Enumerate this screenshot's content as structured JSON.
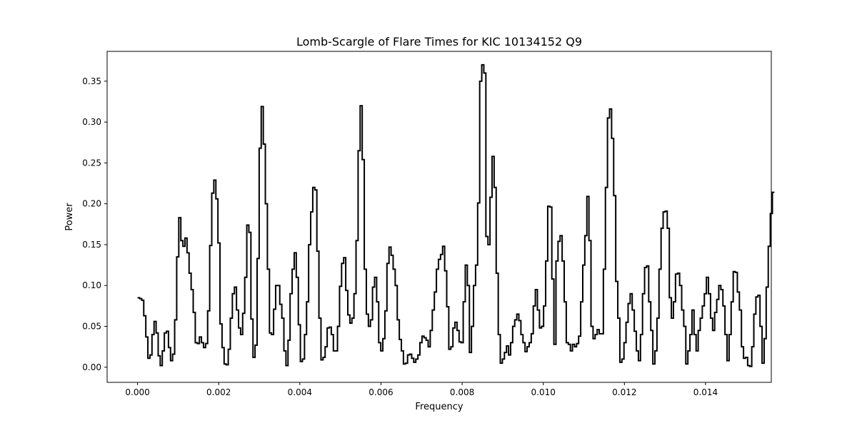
{
  "chart_data": {
    "type": "line",
    "style": "step",
    "title": "Lomb-Scargle of Flare Times for KIC 10134152 Q9",
    "xlabel": "Frequency",
    "ylabel": "Power",
    "xlim": [
      -0.00075,
      0.01562
    ],
    "ylim": [
      -0.0185,
      0.3865
    ],
    "xticks": [
      0.0,
      0.002,
      0.004,
      0.006,
      0.008,
      0.01,
      0.012,
      0.014
    ],
    "xtick_labels": [
      "0.000",
      "0.002",
      "0.004",
      "0.006",
      "0.008",
      "0.010",
      "0.012",
      "0.014"
    ],
    "yticks": [
      0.0,
      0.05,
      0.1,
      0.15,
      0.2,
      0.25,
      0.3,
      0.35
    ],
    "ytick_labels": [
      "0.00",
      "0.05",
      "0.10",
      "0.15",
      "0.20",
      "0.25",
      "0.30",
      "0.35"
    ],
    "grid": false,
    "line_color": "#000000",
    "series": [
      {
        "x_start": 0.0,
        "x_step": 5.08e-05,
        "values": [
          0.085,
          0.084,
          0.082,
          0.063,
          0.037,
          0.011,
          0.015,
          0.04,
          0.056,
          0.042,
          0.014,
          0.002,
          0.02,
          0.042,
          0.044,
          0.024,
          0.008,
          0.016,
          0.058,
          0.135,
          0.183,
          0.155,
          0.148,
          0.158,
          0.14,
          0.115,
          0.095,
          0.067,
          0.03,
          0.029,
          0.037,
          0.03,
          0.024,
          0.029,
          0.069,
          0.149,
          0.213,
          0.229,
          0.206,
          0.152,
          0.053,
          0.024,
          0.004,
          0.003,
          0.022,
          0.06,
          0.09,
          0.098,
          0.07,
          0.048,
          0.04,
          0.066,
          0.11,
          0.174,
          0.165,
          0.059,
          0.012,
          0.027,
          0.133,
          0.268,
          0.319,
          0.273,
          0.2,
          0.12,
          0.042,
          0.04,
          0.071,
          0.1,
          0.1,
          0.077,
          0.06,
          0.02,
          0.002,
          0.033,
          0.09,
          0.12,
          0.14,
          0.11,
          0.052,
          0.007,
          0.01,
          0.04,
          0.08,
          0.15,
          0.19,
          0.22,
          0.217,
          0.142,
          0.06,
          0.009,
          0.012,
          0.025,
          0.048,
          0.049,
          0.04,
          0.02,
          0.02,
          0.05,
          0.099,
          0.127,
          0.134,
          0.094,
          0.064,
          0.054,
          0.06,
          0.09,
          0.155,
          0.265,
          0.32,
          0.254,
          0.12,
          0.065,
          0.05,
          0.058,
          0.098,
          0.11,
          0.08,
          0.03,
          0.02,
          0.035,
          0.069,
          0.127,
          0.147,
          0.137,
          0.12,
          0.1,
          0.058,
          0.034,
          0.02,
          0.004,
          0.005,
          0.015,
          0.016,
          0.011,
          0.006,
          0.01,
          0.015,
          0.03,
          0.038,
          0.036,
          0.033,
          0.025,
          0.045,
          0.07,
          0.092,
          0.12,
          0.132,
          0.138,
          0.148,
          0.118,
          0.074,
          0.022,
          0.025,
          0.048,
          0.055,
          0.045,
          0.031,
          0.03,
          0.08,
          0.125,
          0.1,
          0.018,
          0.05,
          0.1,
          0.125,
          0.201,
          0.35,
          0.37,
          0.36,
          0.16,
          0.15,
          0.208,
          0.258,
          0.22,
          0.115,
          0.04,
          0.005,
          0.01,
          0.018,
          0.026,
          0.015,
          0.03,
          0.05,
          0.058,
          0.065,
          0.057,
          0.04,
          0.03,
          0.019,
          0.025,
          0.03,
          0.041,
          0.075,
          0.095,
          0.07,
          0.048,
          0.05,
          0.075,
          0.13,
          0.197,
          0.196,
          0.108,
          0.028,
          0.13,
          0.154,
          0.161,
          0.13,
          0.08,
          0.03,
          0.028,
          0.02,
          0.028,
          0.025,
          0.029,
          0.038,
          0.08,
          0.125,
          0.161,
          0.209,
          0.155,
          0.05,
          0.035,
          0.04,
          0.046,
          0.041,
          0.041,
          0.12,
          0.22,
          0.305,
          0.316,
          0.28,
          0.21,
          0.105,
          0.06,
          0.006,
          0.01,
          0.03,
          0.055,
          0.078,
          0.09,
          0.07,
          0.044,
          0.02,
          0.008,
          0.04,
          0.09,
          0.122,
          0.124,
          0.08,
          0.045,
          0.004,
          0.02,
          0.06,
          0.12,
          0.17,
          0.19,
          0.191,
          0.17,
          0.085,
          0.06,
          0.08,
          0.114,
          0.115,
          0.1,
          0.07,
          0.05,
          0.004,
          0.02,
          0.04,
          0.07,
          0.04,
          0.02,
          0.045,
          0.06,
          0.075,
          0.09,
          0.11,
          0.09,
          0.06,
          0.045,
          0.067,
          0.083,
          0.1,
          0.095,
          0.075,
          0.04,
          0.008,
          0.04,
          0.08,
          0.117,
          0.116,
          0.092,
          0.07,
          0.025,
          0.011,
          0.012,
          0.002,
          0.001,
          0.025,
          0.065,
          0.086,
          0.088,
          0.05,
          0.005,
          0.035,
          0.098,
          0.148,
          0.188,
          0.214
        ]
      }
    ]
  }
}
